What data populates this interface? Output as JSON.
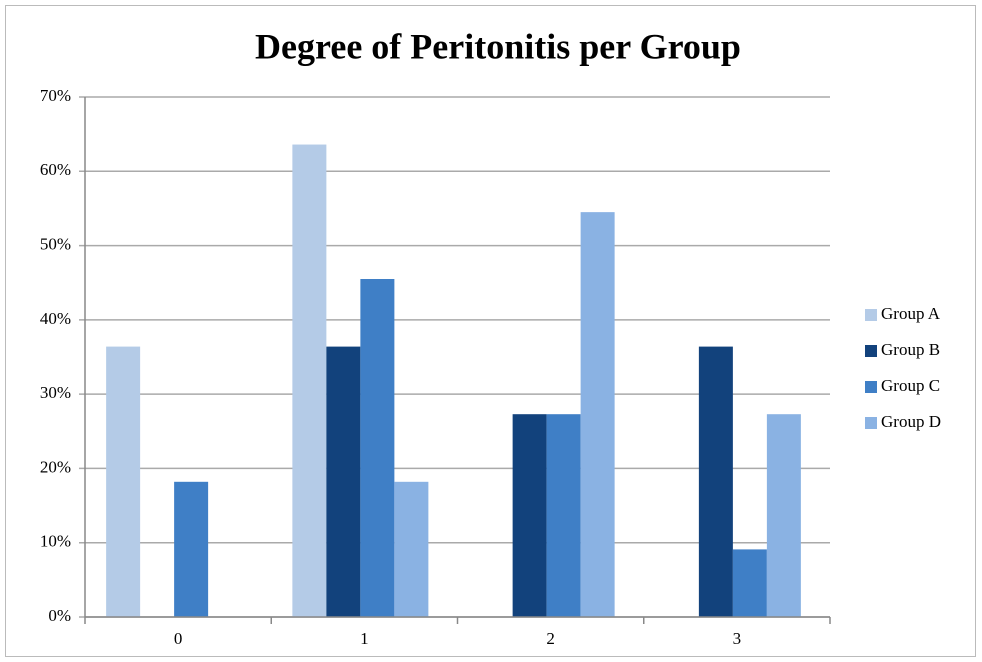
{
  "chart_data": {
    "type": "bar",
    "title": "Degree of Peritonitis per Group",
    "categories": [
      "0",
      "1",
      "2",
      "3"
    ],
    "series": [
      {
        "name": "Group A",
        "color": "#b4cbe7",
        "values": [
          36.4,
          63.6,
          0,
          0
        ]
      },
      {
        "name": "Group B",
        "color": "#12427c",
        "values": [
          0,
          36.4,
          27.3,
          36.4
        ]
      },
      {
        "name": "Group C",
        "color": "#3f7fc6",
        "values": [
          18.2,
          45.5,
          27.3,
          9.1
        ]
      },
      {
        "name": "Group D",
        "color": "#8ab2e3",
        "values": [
          0,
          18.2,
          54.5,
          27.3
        ]
      }
    ],
    "ylim": [
      0,
      70
    ],
    "yticks": [
      {
        "value": 0,
        "label": "0%"
      },
      {
        "value": 10,
        "label": "10%"
      },
      {
        "value": 20,
        "label": "20%"
      },
      {
        "value": 30,
        "label": "30%"
      },
      {
        "value": 40,
        "label": "40%"
      },
      {
        "value": 50,
        "label": "50%"
      },
      {
        "value": 60,
        "label": "60%"
      },
      {
        "value": 70,
        "label": "70%"
      }
    ],
    "grid": true,
    "legend": "right"
  }
}
